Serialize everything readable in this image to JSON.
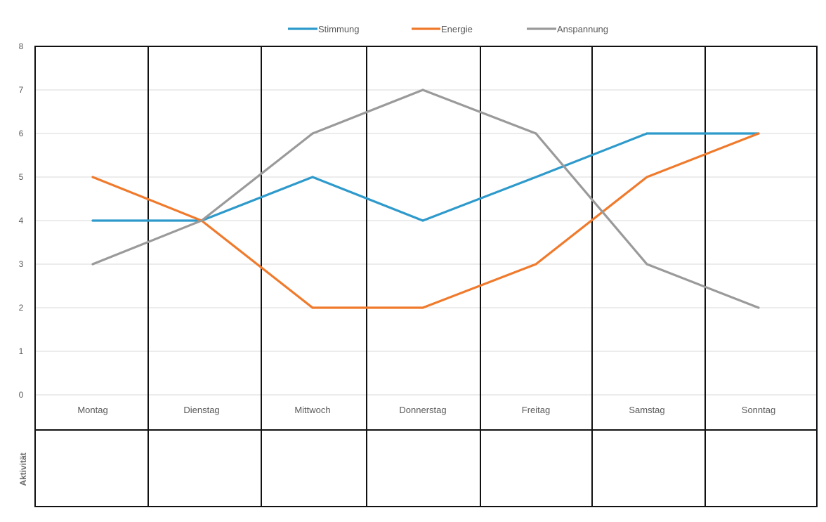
{
  "chart_data": {
    "type": "line",
    "categories": [
      "Montag",
      "Dienstag",
      "Mittwoch",
      "Donnerstag",
      "Freitag",
      "Samstag",
      "Sonntag"
    ],
    "series": [
      {
        "name": "Stimmung",
        "values": [
          4,
          4,
          5,
          4,
          5,
          6,
          6
        ],
        "color": "#2E9ACB"
      },
      {
        "name": "Energie",
        "values": [
          5,
          4,
          2,
          2,
          3,
          5,
          6
        ],
        "color": "#F07A2C"
      },
      {
        "name": "Anspannung",
        "values": [
          3,
          4,
          6,
          7,
          6,
          3,
          2
        ],
        "color": "#9A9A9A"
      }
    ],
    "ylim": [
      0,
      8
    ],
    "yticks": [
      0,
      1,
      2,
      3,
      4,
      5,
      6,
      7,
      8
    ],
    "grid": true,
    "legend": "top-center",
    "row_label": "Aktivität"
  }
}
